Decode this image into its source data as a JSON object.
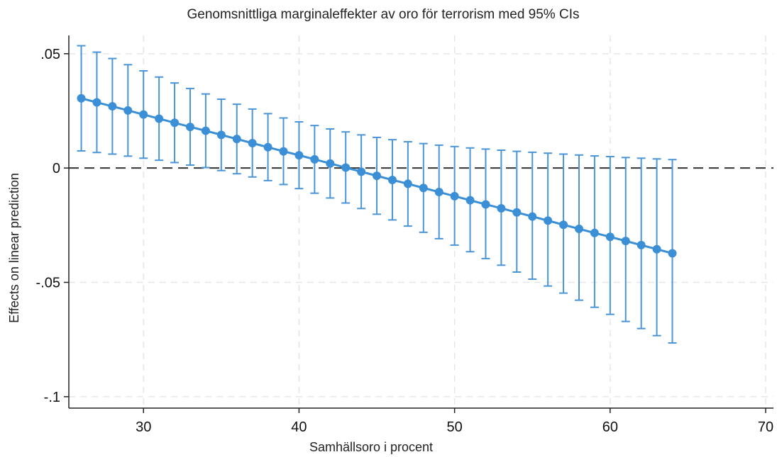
{
  "colors": {
    "series": "#3a8fd6",
    "errorbar": "#4a95d8",
    "zero_line": "#333333",
    "grid": "#e6e6e6",
    "axis": "#222222"
  },
  "chart_data": {
    "type": "scatter",
    "title": "Genomsnittliga marginaleffekter av oro för terrorism med 95% CIs",
    "xlabel": "Samhällsoro i procent",
    "ylabel": "Effects on linear prediction",
    "xlim": [
      25.2,
      70.5
    ],
    "ylim": [
      -0.105,
      0.058
    ],
    "xticks": [
      30,
      40,
      50,
      60,
      70
    ],
    "xtick_labels": [
      "30",
      "40",
      "50",
      "60",
      "70"
    ],
    "yticks": [
      0.05,
      0,
      -0.05,
      -0.1
    ],
    "ytick_labels": [
      ".05",
      "0",
      "-.05",
      "-.1"
    ],
    "grid": true,
    "reference_line": {
      "y": 0,
      "style": "dashed"
    },
    "x": [
      26,
      27,
      28,
      29,
      30,
      31,
      32,
      33,
      34,
      35,
      36,
      37,
      38,
      39,
      40,
      41,
      42,
      43,
      44,
      45,
      46,
      47,
      48,
      49,
      50,
      51,
      52,
      53,
      54,
      55,
      56,
      57,
      58,
      59,
      60,
      61,
      62,
      63,
      64
    ],
    "series": [
      {
        "y": [
          0.0305,
          0.0287,
          0.027,
          0.0252,
          0.0234,
          0.0216,
          0.0198,
          0.018,
          0.0163,
          0.0145,
          0.0127,
          0.0109,
          0.0091,
          0.0073,
          0.0056,
          0.0038,
          0.002,
          0.0002,
          -0.0016,
          -0.0034,
          -0.0052,
          -0.0069,
          -0.0087,
          -0.0105,
          -0.0123,
          -0.0141,
          -0.0159,
          -0.0176,
          -0.0194,
          -0.0212,
          -0.023,
          -0.0248,
          -0.0266,
          -0.0284,
          -0.0301,
          -0.0319,
          -0.0337,
          -0.0355,
          -0.0373
        ],
        "ci_low": [
          0.0075,
          0.0068,
          0.0061,
          0.0052,
          0.0043,
          0.0034,
          0.0024,
          0.0013,
          0.0002,
          -0.0011,
          -0.0025,
          -0.0039,
          -0.0055,
          -0.0072,
          -0.009,
          -0.011,
          -0.0131,
          -0.0153,
          -0.0177,
          -0.0202,
          -0.0227,
          -0.0254,
          -0.0281,
          -0.0309,
          -0.0337,
          -0.0366,
          -0.0396,
          -0.0425,
          -0.0455,
          -0.0486,
          -0.0516,
          -0.0547,
          -0.0578,
          -0.0609,
          -0.064,
          -0.0671,
          -0.0702,
          -0.0733,
          -0.0765
        ],
        "ci_high": [
          0.0535,
          0.0507,
          0.0479,
          0.0452,
          0.0425,
          0.0398,
          0.0372,
          0.0348,
          0.0324,
          0.0301,
          0.0279,
          0.0258,
          0.0238,
          0.0219,
          0.0202,
          0.0186,
          0.0171,
          0.0158,
          0.0145,
          0.0134,
          0.0124,
          0.0115,
          0.0107,
          0.01,
          0.0094,
          0.0088,
          0.0083,
          0.0078,
          0.0073,
          0.0069,
          0.0065,
          0.0061,
          0.0057,
          0.0053,
          0.005,
          0.0046,
          0.0043,
          0.004,
          0.0037
        ]
      }
    ]
  }
}
